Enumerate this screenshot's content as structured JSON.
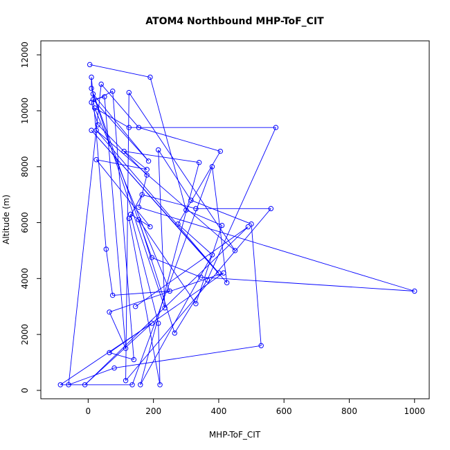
{
  "chart_data": {
    "type": "scatter",
    "title": "ATOM4 Northbound MHP-ToF_CIT",
    "xlabel": "MHP-ToF_CIT",
    "ylabel": "Altitude (m)",
    "xlim": [
      -145,
      1045
    ],
    "ylim": [
      -300,
      12500
    ],
    "xticks": [
      0,
      200,
      400,
      600,
      800,
      1000
    ],
    "yticks": [
      0,
      2000,
      4000,
      6000,
      8000,
      10000,
      12000
    ],
    "colors": {
      "series": "#0000ff"
    },
    "legend": "none",
    "grid": false,
    "points": [
      [
        5,
        11650
      ],
      [
        190,
        11200
      ],
      [
        300,
        6450
      ],
      [
        410,
        5900
      ],
      [
        330,
        3100
      ],
      [
        155,
        6100
      ],
      [
        265,
        2050
      ],
      [
        365,
        3950
      ],
      [
        575,
        9400
      ],
      [
        125,
        9400
      ],
      [
        20,
        10100
      ],
      [
        250,
        3550
      ],
      [
        75,
        3400
      ],
      [
        55,
        5050
      ],
      [
        10,
        11200
      ],
      [
        10,
        10800
      ],
      [
        195,
        4750
      ],
      [
        345,
        4050
      ],
      [
        1000,
        3550
      ],
      [
        155,
        6550
      ],
      [
        180,
        7700
      ],
      [
        30,
        9500
      ],
      [
        10,
        10300
      ],
      [
        75,
        10700
      ],
      [
        140,
        1100
      ],
      [
        65,
        1350
      ],
      [
        415,
        4200
      ],
      [
        65,
        2800
      ],
      [
        115,
        1500
      ],
      [
        50,
        10500
      ],
      [
        15,
        10400
      ],
      [
        185,
        8200
      ],
      [
        15,
        10600
      ],
      [
        235,
        2950
      ],
      [
        215,
        8600
      ],
      [
        315,
        6800
      ],
      [
        500,
        5950
      ],
      [
        530,
        1600
      ],
      [
        80,
        800
      ],
      [
        -60,
        200
      ],
      [
        40,
        10950
      ],
      [
        155,
        9400
      ],
      [
        405,
        8550
      ],
      [
        275,
        5950
      ],
      [
        380,
        4850
      ],
      [
        160,
        200
      ],
      [
        340,
        8150
      ],
      [
        110,
        8550
      ],
      [
        180,
        7900
      ],
      [
        25,
        8250
      ],
      [
        190,
        5850
      ],
      [
        130,
        6300
      ],
      [
        215,
        2400
      ],
      [
        220,
        200
      ],
      [
        125,
        6150
      ],
      [
        165,
        7000
      ],
      [
        330,
        6500
      ],
      [
        560,
        6500
      ],
      [
        115,
        350
      ],
      [
        125,
        10650
      ],
      [
        450,
        5000
      ],
      [
        25,
        9300
      ],
      [
        400,
        4200
      ],
      [
        10,
        9300
      ],
      [
        425,
        3850
      ],
      [
        380,
        8000
      ],
      [
        135,
        200
      ],
      [
        -85,
        200
      ],
      [
        195,
        2400
      ],
      [
        -10,
        200
      ],
      [
        490,
        5850
      ],
      [
        145,
        3000
      ]
    ]
  }
}
